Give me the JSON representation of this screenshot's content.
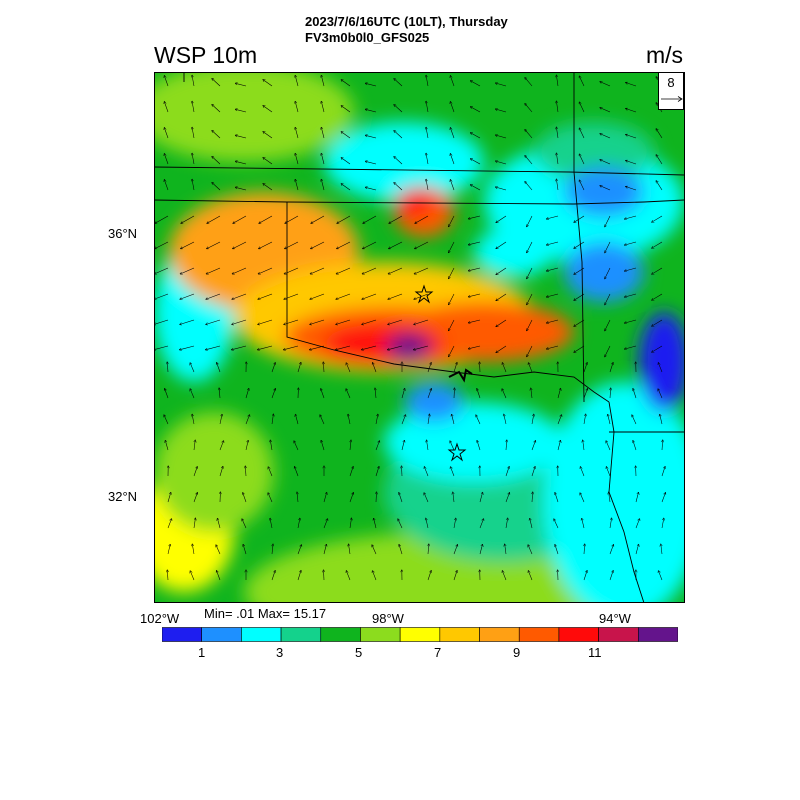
{
  "header": {
    "title_line1": "2023/7/6/16UTC (10LT), Thursday",
    "title_line2": "FV3m0b0l0_GFS025",
    "variable": "WSP 10m",
    "units": "m/s"
  },
  "reference_vector": {
    "label": "8"
  },
  "axes": {
    "lat_labels": [
      "36°N",
      "32°N"
    ],
    "lon_labels": [
      "102°W",
      "98°W",
      "94°W"
    ]
  },
  "stats": {
    "text": "Min= .01 Max= 15.17"
  },
  "colorbar": {
    "colors": [
      "#1e1ef0",
      "#1e90ff",
      "#00ffff",
      "#14d28c",
      "#0fb41e",
      "#8cdc1e",
      "#ffff00",
      "#ffc800",
      "#ffa014",
      "#ff5a00",
      "#ff0a0a",
      "#c8144b",
      "#64148c"
    ],
    "labels": [
      "1",
      "3",
      "5",
      "7",
      "9",
      "11"
    ]
  },
  "colors": {
    "state_border": "#000000",
    "river": "#000000"
  }
}
